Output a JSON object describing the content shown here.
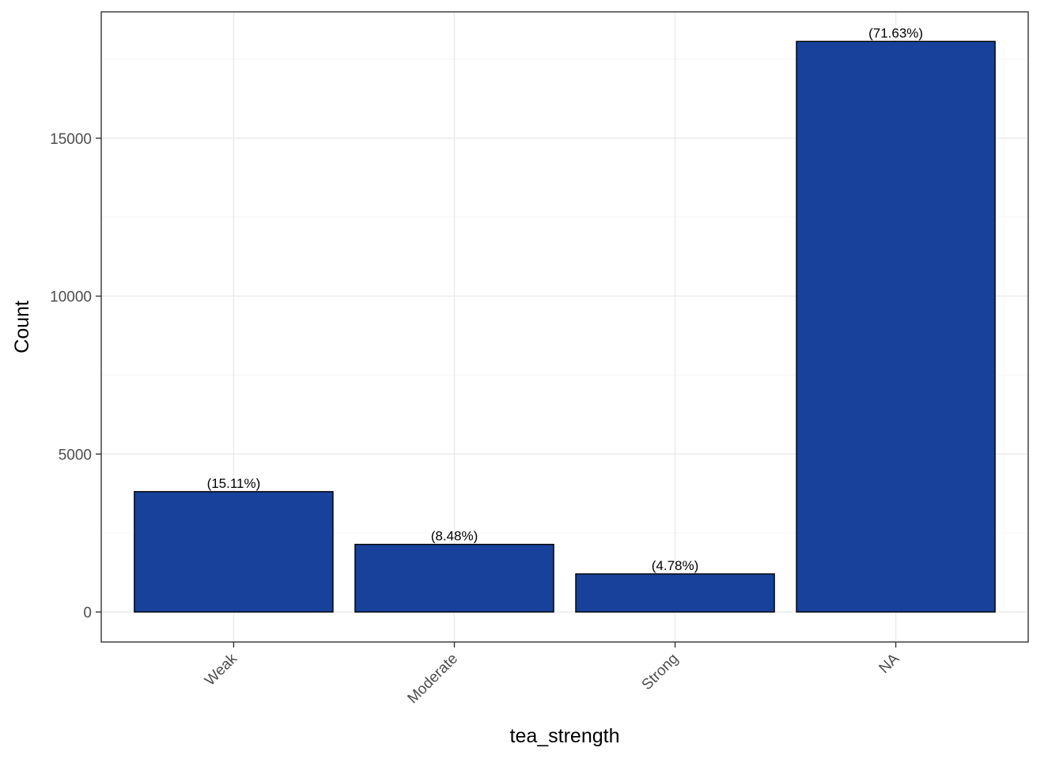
{
  "chart_data": {
    "type": "bar",
    "categories": [
      "Weak",
      "Moderate",
      "Strong",
      "NA"
    ],
    "values": [
      3810,
      2140,
      1205,
      18065
    ],
    "labels": [
      "(15.11%)",
      "(8.48%)",
      "(4.78%)",
      "(71.63%)"
    ],
    "xlabel": "tea_strength",
    "ylabel": "Count",
    "ylim": [
      -950,
      19000
    ],
    "yticks": [
      0,
      5000,
      10000,
      15000
    ],
    "ytick_labels": [
      "0",
      "5000",
      "10000",
      "15000"
    ],
    "x_tick_rotation": -45,
    "grid": true,
    "legend": "none"
  },
  "colors": {
    "bar_fill": "#17419A",
    "bar_stroke": "#000000",
    "grid_major": "#EBEBEB",
    "grid_minor": "#F5F5F5",
    "panel_border": "#333333",
    "tick_text": "#4D4D4D"
  }
}
